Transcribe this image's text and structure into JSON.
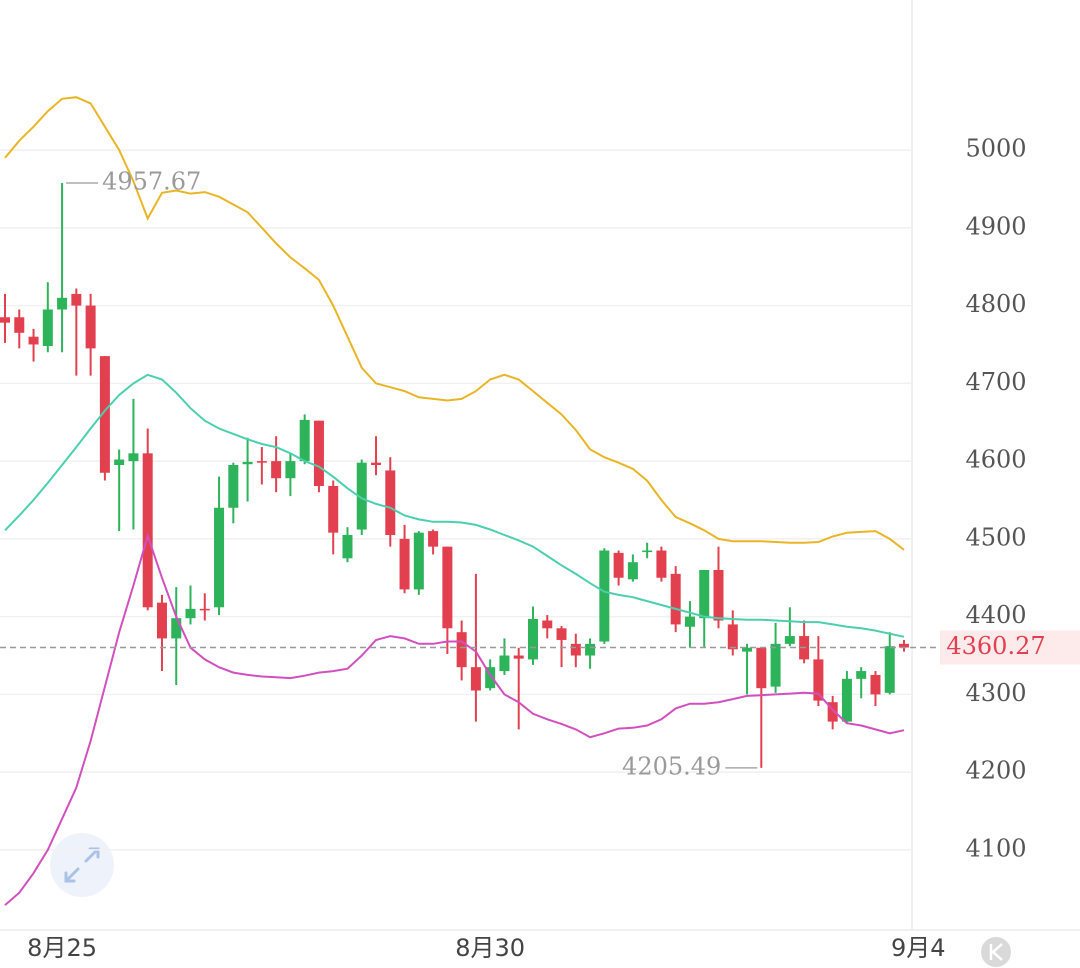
{
  "chart_data": {
    "type": "candlestick",
    "up_color": "#2db35a",
    "down_color": "#e2404f",
    "ylim": [
      3997,
      5193
    ],
    "yticks": [
      4100,
      4200,
      4300,
      4400,
      4500,
      4600,
      4700,
      4800,
      4900,
      5000
    ],
    "xticks": [
      {
        "value": 4,
        "label": "8月25"
      },
      {
        "value": 34,
        "label": "8月30"
      },
      {
        "value": 64,
        "label": "9月4"
      }
    ],
    "grid": true,
    "open": [
      4785,
      4785,
      4760,
      4748,
      4795,
      4815,
      4800,
      4735,
      4595,
      4600,
      4610,
      4418,
      4372,
      4398,
      4410,
      4412,
      4540,
      4596,
      4600,
      4600,
      4578,
      4600,
      4652,
      4568,
      4475,
      4512,
      4598,
      4588,
      4500,
      4435,
      4510,
      4490,
      4380,
      4335,
      4308,
      4330,
      4350,
      4345,
      4395,
      4385,
      4365,
      4350,
      4368,
      4482,
      4448,
      4483,
      4485,
      4455,
      4387,
      4398,
      4460,
      4390,
      4355,
      4360,
      4310,
      4365,
      4375,
      4345,
      4290,
      4265,
      4320,
      4325,
      4302,
      4365
    ],
    "high": [
      4815,
      4795,
      4770,
      4830,
      4957.67,
      4822,
      4815,
      4735,
      4615,
      4680,
      4642,
      4428,
      4438,
      4440,
      4430,
      4580,
      4598,
      4630,
      4618,
      4632,
      4610,
      4660,
      4652,
      4575,
      4515,
      4602,
      4632,
      4605,
      4518,
      4510,
      4512,
      4490,
      4395,
      4455,
      4345,
      4372,
      4360,
      4413,
      4402,
      4388,
      4378,
      4372,
      4488,
      4485,
      4480,
      4495,
      4490,
      4465,
      4420,
      4460,
      4490,
      4408,
      4365,
      4360,
      4392,
      4412,
      4395,
      4375,
      4298,
      4330,
      4335,
      4330,
      4380,
      4370
    ],
    "low": [
      4752,
      4745,
      4728,
      4740,
      4740,
      4710,
      4710,
      4575,
      4510,
      4512,
      4408,
      4330,
      4312,
      4390,
      4395,
      4402,
      4520,
      4548,
      4570,
      4560,
      4555,
      4596,
      4560,
      4480,
      4470,
      4505,
      4582,
      4490,
      4430,
      4428,
      4480,
      4352,
      4318,
      4265,
      4305,
      4325,
      4255,
      4338,
      4372,
      4335,
      4335,
      4333,
      4365,
      4440,
      4445,
      4475,
      4445,
      4380,
      4360,
      4360,
      4385,
      4350,
      4300,
      4205.49,
      4302,
      4362,
      4340,
      4285,
      4255,
      4262,
      4295,
      4285,
      4300,
      4355
    ],
    "close": [
      4778,
      4765,
      4750,
      4795,
      4810,
      4800,
      4745,
      4585,
      4602,
      4610,
      4412,
      4372,
      4398,
      4410,
      4409,
      4540,
      4595,
      4599,
      4598,
      4578,
      4600,
      4653,
      4568,
      4508,
      4505,
      4598,
      4595,
      4505,
      4435,
      4508,
      4490,
      4385,
      4335,
      4305,
      4335,
      4350,
      4346,
      4397,
      4385,
      4370,
      4350,
      4365,
      4485,
      4450,
      4470,
      4485,
      4450,
      4390,
      4400,
      4460,
      4395,
      4358,
      4360,
      4308,
      4365,
      4375,
      4345,
      4292,
      4265,
      4320,
      4330,
      4300,
      4362,
      4360.27
    ],
    "series": [
      {
        "color": "#e9b526",
        "values": [
          4990,
          5012,
          5030,
          5050,
          5066,
          5068,
          5060,
          5030,
          5000,
          4960,
          4912,
          4945,
          4948,
          4944,
          4946,
          4940,
          4930,
          4920,
          4900,
          4880,
          4862,
          4848,
          4833,
          4800,
          4760,
          4720,
          4700,
          4695,
          4690,
          4682,
          4680,
          4678,
          4680,
          4690,
          4705,
          4711,
          4705,
          4690,
          4675,
          4660,
          4640,
          4615,
          4605,
          4598,
          4590,
          4575,
          4550,
          4528,
          4520,
          4511,
          4500,
          4497,
          4497,
          4497,
          4496,
          4495,
          4495,
          4496,
          4503,
          4508,
          4509,
          4510,
          4500,
          4486
        ]
      },
      {
        "color": "#4ccfae",
        "values": [
          4511,
          4530,
          4550,
          4572,
          4595,
          4618,
          4642,
          4665,
          4685,
          4700,
          4711,
          4705,
          4688,
          4668,
          4652,
          4642,
          4635,
          4628,
          4622,
          4618,
          4610,
          4600,
          4593,
          4580,
          4565,
          4552,
          4545,
          4540,
          4530,
          4525,
          4522,
          4522,
          4521,
          4518,
          4512,
          4505,
          4498,
          4490,
          4478,
          4466,
          4455,
          4443,
          4432,
          4428,
          4425,
          4420,
          4415,
          4410,
          4405,
          4400,
          4398,
          4397,
          4396,
          4396,
          4395,
          4394,
          4393,
          4393,
          4390,
          4387,
          4385,
          4382,
          4378,
          4374
        ]
      },
      {
        "color": "#d24fbf",
        "values": [
          4029,
          4045,
          4070,
          4100,
          4140,
          4180,
          4240,
          4310,
          4380,
          4440,
          4504,
          4450,
          4400,
          4360,
          4345,
          4335,
          4328,
          4325,
          4323,
          4322,
          4321,
          4324,
          4328,
          4330,
          4333,
          4350,
          4370,
          4375,
          4372,
          4365,
          4365,
          4368,
          4368,
          4355,
          4325,
          4300,
          4290,
          4275,
          4268,
          4262,
          4255,
          4245,
          4250,
          4256,
          4257,
          4260,
          4268,
          4282,
          4288,
          4288,
          4290,
          4294,
          4298,
          4299,
          4300,
          4301,
          4302,
          4301,
          4280,
          4263,
          4260,
          4255,
          4250,
          4254
        ]
      }
    ]
  }
}
